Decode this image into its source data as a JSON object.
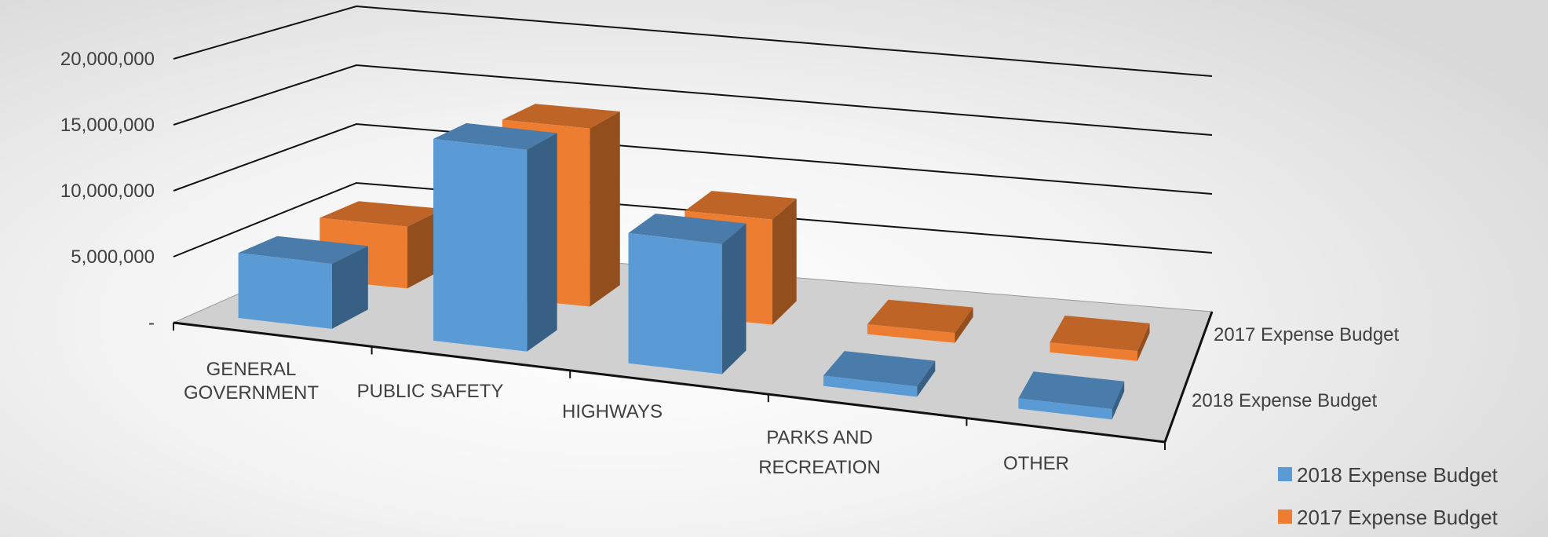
{
  "chart_data": {
    "type": "bar",
    "subtype": "3d-clustered-column",
    "categories": [
      "GENERAL GOVERNMENT",
      "PUBLIC SAFETY",
      "HIGHWAYS",
      "PARKS AND RECREATION",
      "OTHER"
    ],
    "series": [
      {
        "name": "2018 Expense Budget",
        "values": [
          5000000,
          15500000,
          10000000,
          800000,
          800000
        ]
      },
      {
        "name": "2017 Expense Budget",
        "values": [
          5000000,
          14400000,
          8500000,
          800000,
          800000
        ]
      }
    ],
    "depth_labels": [
      "2017 Expense Budget",
      "2018 Expense Budget"
    ],
    "y_ticks": [
      "-",
      "5,000,000",
      "10,000,000",
      "15,000,000",
      "20,000,000"
    ],
    "ylim": [
      0,
      20000000
    ],
    "legend_position": "bottom-right",
    "grid": true,
    "colors": {
      "2018 Expense Budget": "#5b9bd5",
      "2017 Expense Budget": "#ed7d31"
    }
  }
}
